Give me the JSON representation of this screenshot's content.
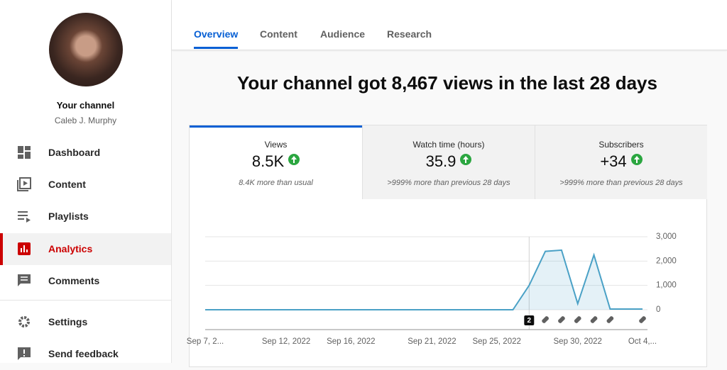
{
  "sidebar": {
    "channel_title": "Your channel",
    "channel_name": "Caleb J. Murphy",
    "nav": [
      {
        "label": "Dashboard"
      },
      {
        "label": "Content"
      },
      {
        "label": "Playlists"
      },
      {
        "label": "Analytics",
        "active": true
      },
      {
        "label": "Comments"
      },
      {
        "label": "Settings"
      },
      {
        "label": "Send feedback"
      }
    ]
  },
  "tabs": [
    {
      "label": "Overview",
      "active": true
    },
    {
      "label": "Content"
    },
    {
      "label": "Audience"
    },
    {
      "label": "Research"
    }
  ],
  "headline": "Your channel got 8,467 views in the last 28 days",
  "metrics": [
    {
      "label": "Views",
      "value": "8.5K",
      "note": "8.4K more than usual",
      "active": true
    },
    {
      "label": "Watch time (hours)",
      "value": "35.9",
      "note": ">999% more than previous 28 days"
    },
    {
      "label": "Subscribers",
      "value": "+34",
      "note": ">999% more than previous 28 days"
    }
  ],
  "chart_data": {
    "type": "line",
    "categories": [
      "Sep 7, 2...",
      null,
      null,
      null,
      null,
      "Sep 12, 2022",
      null,
      null,
      null,
      "Sep 16, 2022",
      null,
      null,
      null,
      null,
      "Sep 21, 2022",
      null,
      null,
      null,
      "Sep 25, 2022",
      null,
      null,
      null,
      null,
      "Sep 30, 2022",
      null,
      null,
      null,
      "Oct 4,..."
    ],
    "values": [
      0,
      0,
      0,
      0,
      0,
      0,
      0,
      0,
      0,
      0,
      0,
      0,
      0,
      0,
      0,
      0,
      0,
      0,
      0,
      0,
      1000,
      2400,
      2450,
      250,
      2250,
      30,
      30,
      30
    ],
    "color": "#4aa1c6",
    "ylim": [
      0,
      3000
    ],
    "yticks": [
      0,
      {
        "value": 1000,
        "label": "1,000"
      },
      {
        "value": 2000,
        "label": "2,000"
      },
      {
        "value": 3000,
        "label": "3,000"
      }
    ],
    "grid": true,
    "annotation": "2"
  }
}
